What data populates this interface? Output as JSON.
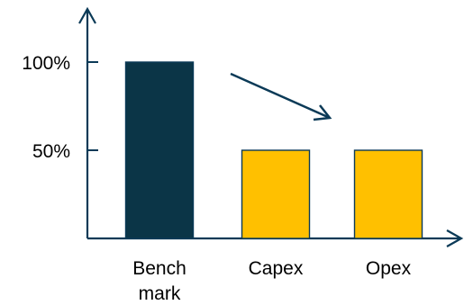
{
  "chart_data": {
    "type": "bar",
    "categories": [
      [
        "Bench",
        "mark"
      ],
      [
        "Capex"
      ],
      [
        "Opex"
      ]
    ],
    "values": [
      100,
      50,
      50
    ],
    "bar_colors": [
      "#0b3547",
      "#ffc000",
      "#ffc000"
    ],
    "axis_color": "#0b3a57",
    "yticks": [
      {
        "value": 50,
        "label": "50%"
      },
      {
        "value": 100,
        "label": "100%"
      }
    ],
    "ylim": [
      0,
      100
    ],
    "title": "",
    "xlabel": "",
    "ylabel": "",
    "grid": false,
    "annotations": [
      {
        "type": "arrow",
        "meaning": "decrease",
        "from_category": 0,
        "to_category": 1
      }
    ]
  }
}
